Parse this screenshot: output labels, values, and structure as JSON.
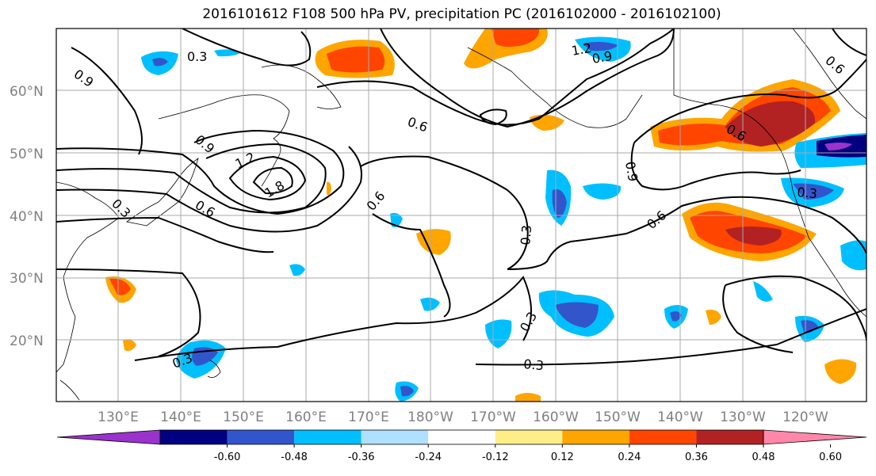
{
  "title": "2016101612 F108 500 hPa PV, precipitation PC (2016102000 - 2016102100)",
  "map": {
    "lat_labels": [
      "20°N",
      "30°N",
      "40°N",
      "50°N",
      "60°N"
    ],
    "lon_labels": [
      "130°E",
      "140°E",
      "150°E",
      "160°E",
      "170°E",
      "180°W",
      "170°W",
      "160°W",
      "150°W",
      "140°W",
      "130°W",
      "120°W"
    ],
    "contour_labels": [
      "0.3",
      "0.9",
      "0.9",
      "1.2",
      "1.8",
      "0.6",
      "0.3",
      "0.6",
      "0.6",
      "1.2",
      "0.9",
      "0.9",
      "0.6",
      "0.3",
      "0.3",
      "0.3",
      "0.3",
      "0.3",
      "0.6",
      "0.6"
    ],
    "grid": true
  },
  "colorbar": {
    "ticks": [
      "-0.60",
      "-0.48",
      "-0.36",
      "-0.24",
      "-0.12",
      "0.12",
      "0.24",
      "0.36",
      "0.48",
      "0.60"
    ],
    "colors": [
      "#9933cc",
      "#000080",
      "#3355cc",
      "#00bfff",
      "#b0e0ff",
      "#ffffff",
      "#ffee88",
      "#ffa500",
      "#ff4500",
      "#b22222",
      "#ff88aa"
    ]
  }
}
